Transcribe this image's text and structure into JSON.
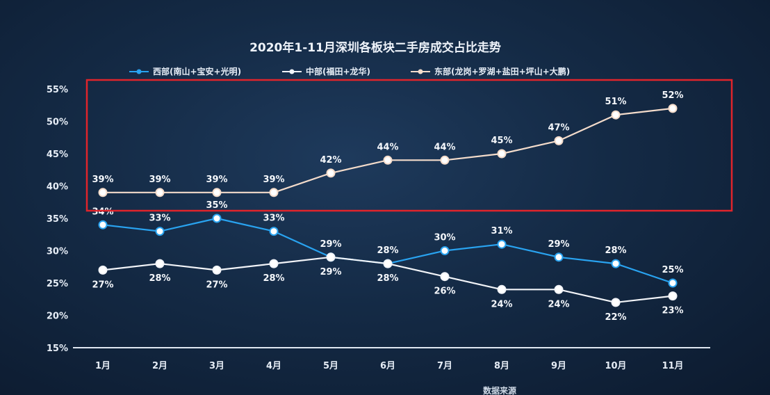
{
  "chart_data": {
    "type": "line",
    "title": "2020年1-11月深圳各板块二手房成交占比走势",
    "categories": [
      "1月",
      "2月",
      "3月",
      "4月",
      "5月",
      "6月",
      "7月",
      "8月",
      "9月",
      "10月",
      "11月"
    ],
    "y_ticks": [
      "15%",
      "20%",
      "25%",
      "30%",
      "35%",
      "40%",
      "45%",
      "50%",
      "55%"
    ],
    "ylim": [
      15,
      55
    ],
    "series": [
      {
        "name": "西部(南山+宝安+光明)",
        "color": "#29a3f0",
        "values": [
          34,
          33,
          35,
          33,
          29,
          28,
          30,
          31,
          29,
          28,
          25
        ],
        "labels": [
          "34%",
          "33%",
          "35%",
          "33%",
          "29%",
          "28%",
          "30%",
          "31%",
          "29%",
          "28%",
          "25%"
        ],
        "label_pos": "above"
      },
      {
        "name": "中部(福田+龙华)",
        "color": "#f2f4f8",
        "values": [
          27,
          28,
          27,
          28,
          29,
          28,
          26,
          24,
          24,
          22,
          23
        ],
        "labels": [
          "27%",
          "28%",
          "27%",
          "28%",
          "29%",
          "28%",
          "26%",
          "24%",
          "24%",
          "22%",
          "23%"
        ],
        "label_pos": "below"
      },
      {
        "name": "东部(龙岗+罗湖+盐田+坪山+大鹏)",
        "color": "#f4dccb",
        "values": [
          39,
          39,
          39,
          39,
          42,
          44,
          44,
          45,
          47,
          51,
          52
        ],
        "labels": [
          "39%",
          "39%",
          "39%",
          "39%",
          "42%",
          "44%",
          "44%",
          "45%",
          "47%",
          "51%",
          "52%"
        ],
        "label_pos": "above"
      }
    ],
    "highlight": {
      "color": "#e0242b"
    },
    "footer_text": "数据来源"
  }
}
